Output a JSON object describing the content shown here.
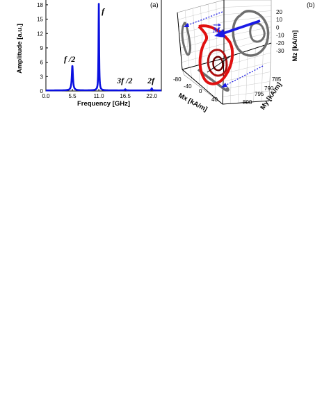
{
  "colors": {
    "spectrum": "#0a10e0",
    "trajectory": "#e01010",
    "projection": "#6e6e6e",
    "vector": "#1a1ae6",
    "grid": "#c8c8c8"
  },
  "chart_data": [
    {
      "type": "line",
      "panel_label": "(a)",
      "xlabel": "Frequency [GHz]",
      "ylabel": "Amplitude [a.u.]",
      "xlim": [
        0,
        24
      ],
      "ylim": [
        0,
        19
      ],
      "x_ticks": [
        "0.0",
        "5.5",
        "11.0",
        "16.5",
        "22.0"
      ],
      "y_ticks": [
        "0",
        "3",
        "6",
        "9",
        "12",
        "15",
        "18"
      ],
      "grid": false,
      "peaks": [
        {
          "x": 5.5,
          "y": 5.3,
          "label": "f /2"
        },
        {
          "x": 11.0,
          "y": 18.2,
          "label": "f"
        },
        {
          "x": 16.5,
          "y": 0.35,
          "label": "3f /2"
        },
        {
          "x": 22.0,
          "y": 0.55,
          "label": "2f"
        }
      ]
    },
    {
      "type": "line3d",
      "panel_label": "(b)",
      "xlabel": "Mx [kA/m]",
      "ylabel": "My [kA/m]",
      "zlabel": "Mz [kA/m]",
      "x_ticks": [
        "-80",
        "-40",
        "0",
        "40"
      ],
      "y_ticks": [
        "785",
        "790",
        "795",
        "800"
      ],
      "z_ticks": [
        "20",
        "10",
        "0",
        "-10",
        "-20",
        "-30"
      ],
      "vector_label": "M",
      "grid": true
    }
  ]
}
